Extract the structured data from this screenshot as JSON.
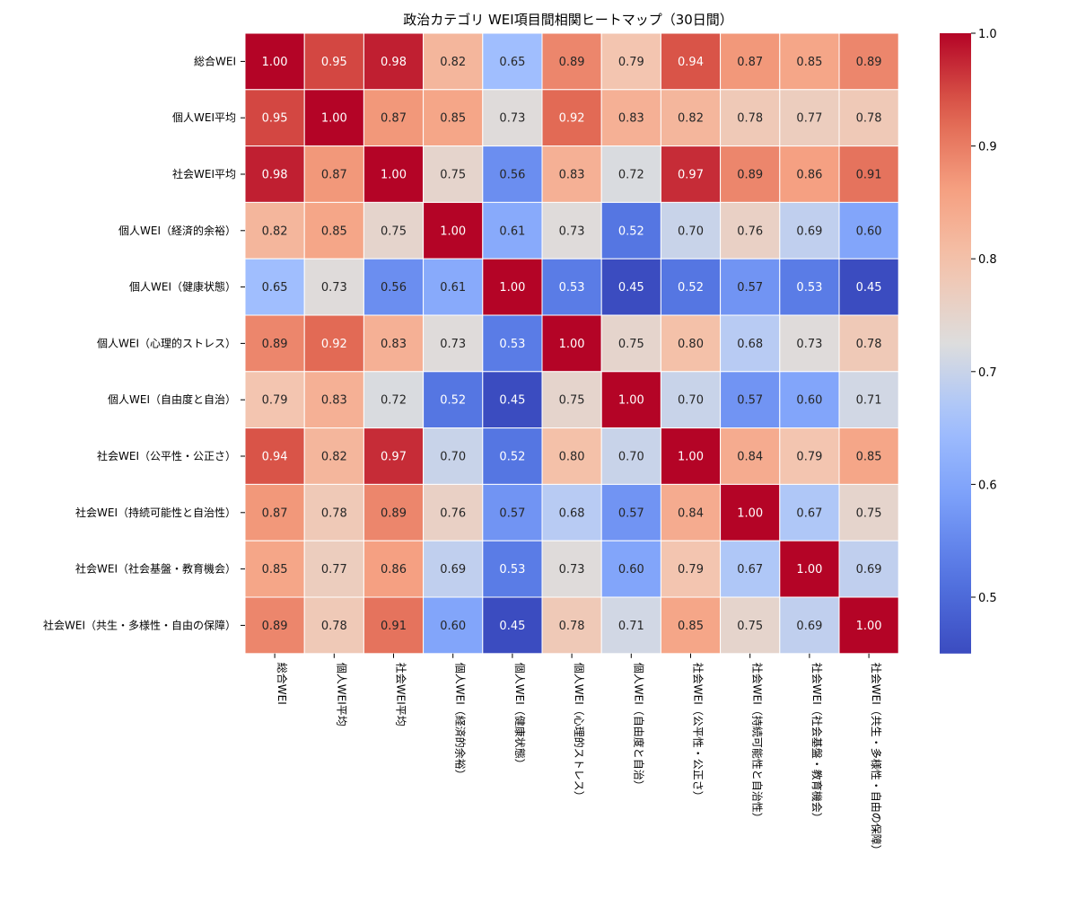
{
  "chart_data": {
    "type": "heatmap",
    "title": "政治カテゴリ WEI項目間相関ヒートマップ（30日間）",
    "colormap": "coolwarm",
    "value_range": [
      0.45,
      1.0
    ],
    "colorbar_ticks": [
      "0.5",
      "0.6",
      "0.7",
      "0.8",
      "0.9",
      "1.0"
    ],
    "labels": [
      "総合WEI",
      "個人WEI平均",
      "社会WEI平均",
      "個人WEI（経済的余裕）",
      "個人WEI（健康状態）",
      "個人WEI（心理的ストレス）",
      "個人WEI（自由度と自治）",
      "社会WEI（公平性・公正さ）",
      "社会WEI（持続可能性と自治性）",
      "社会WEI（社会基盤・教育機会）",
      "社会WEI（共生・多様性・自由の保障）"
    ],
    "matrix": [
      [
        1.0,
        0.95,
        0.98,
        0.82,
        0.65,
        0.89,
        0.79,
        0.94,
        0.87,
        0.85,
        0.89
      ],
      [
        0.95,
        1.0,
        0.87,
        0.85,
        0.73,
        0.92,
        0.83,
        0.82,
        0.78,
        0.77,
        0.78
      ],
      [
        0.98,
        0.87,
        1.0,
        0.75,
        0.56,
        0.83,
        0.72,
        0.97,
        0.89,
        0.86,
        0.91
      ],
      [
        0.82,
        0.85,
        0.75,
        1.0,
        0.61,
        0.73,
        0.52,
        0.7,
        0.76,
        0.69,
        0.6
      ],
      [
        0.65,
        0.73,
        0.56,
        0.61,
        1.0,
        0.53,
        0.45,
        0.52,
        0.57,
        0.53,
        0.45
      ],
      [
        0.89,
        0.92,
        0.83,
        0.73,
        0.53,
        1.0,
        0.75,
        0.8,
        0.68,
        0.73,
        0.78
      ],
      [
        0.79,
        0.83,
        0.72,
        0.52,
        0.45,
        0.75,
        1.0,
        0.7,
        0.57,
        0.6,
        0.71
      ],
      [
        0.94,
        0.82,
        0.97,
        0.7,
        0.52,
        0.8,
        0.7,
        1.0,
        0.84,
        0.79,
        0.85
      ],
      [
        0.87,
        0.78,
        0.89,
        0.76,
        0.57,
        0.68,
        0.57,
        0.84,
        1.0,
        0.67,
        0.75
      ],
      [
        0.85,
        0.77,
        0.86,
        0.69,
        0.53,
        0.73,
        0.6,
        0.79,
        0.67,
        1.0,
        0.69
      ],
      [
        0.89,
        0.78,
        0.91,
        0.6,
        0.45,
        0.78,
        0.71,
        0.85,
        0.75,
        0.69,
        1.0
      ]
    ]
  }
}
